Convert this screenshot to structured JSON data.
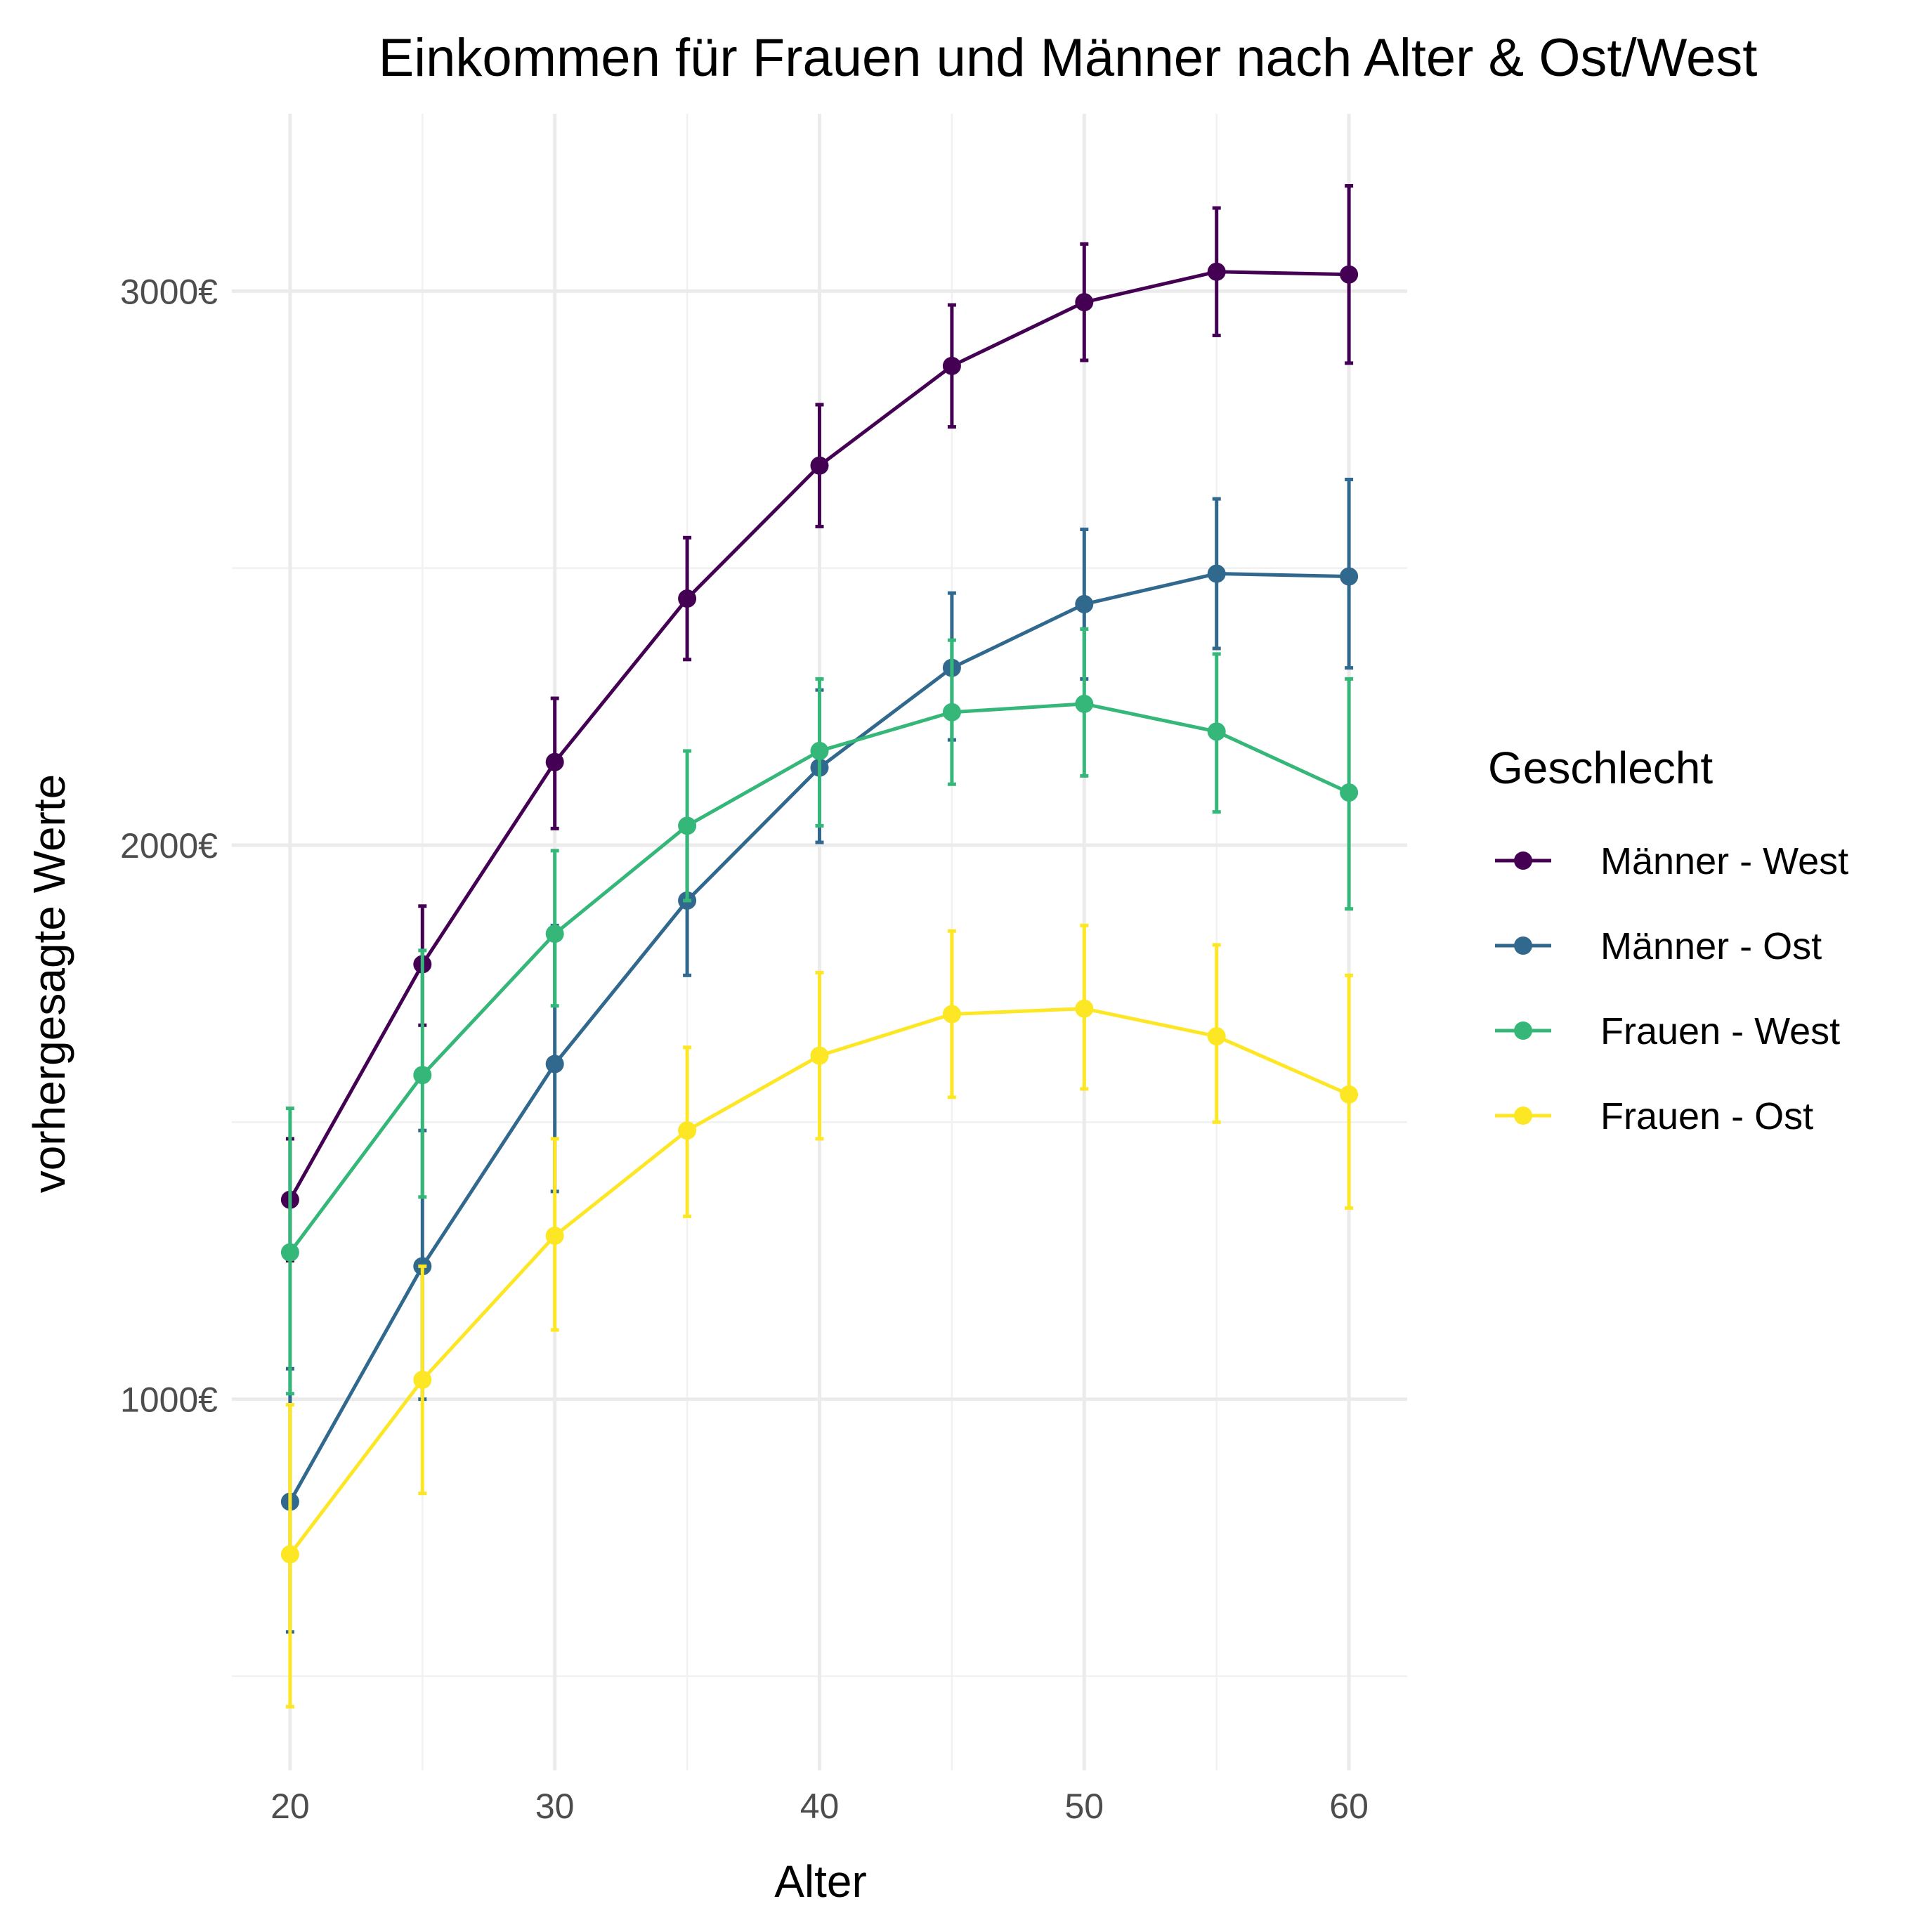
{
  "chart_data": {
    "type": "line",
    "title": "Einkommen für Frauen und Männer nach Alter & Ost/West",
    "xlabel": "Alter",
    "ylabel": "vorhergesagte Werte",
    "x": [
      20,
      25,
      30,
      35,
      40,
      45,
      50,
      55,
      60
    ],
    "x_ticks": [
      20,
      30,
      40,
      50,
      60
    ],
    "x_tick_labels": [
      "20",
      "30",
      "40",
      "50",
      "60"
    ],
    "xlim": [
      17.8,
      62.2
    ],
    "y_ticks": [
      1000,
      2000,
      3000
    ],
    "y_tick_labels": [
      "1000€",
      "2000€",
      "3000€"
    ],
    "y_minor_ticks": [
      500,
      1500,
      2500
    ],
    "ylim": [
      330,
      3320
    ],
    "grid": true,
    "error_bars": true,
    "legend": {
      "title": "Geschlecht",
      "position": "right"
    },
    "series": [
      {
        "name": "Männer - West",
        "color": "#440154",
        "values": [
          1360,
          1785,
          2150,
          2445,
          2685,
          2865,
          2980,
          3035,
          3030
        ],
        "lower": [
          1250,
          1675,
          2030,
          2335,
          2575,
          2755,
          2875,
          2920,
          2870
        ],
        "upper": [
          1470,
          1890,
          2265,
          2555,
          2795,
          2975,
          3085,
          3150,
          3190
        ]
      },
      {
        "name": "Männer - Ost",
        "color": "#31688e",
        "values": [
          815,
          1240,
          1605,
          1900,
          2140,
          2320,
          2435,
          2490,
          2485
        ],
        "lower": [
          580,
          1000,
          1375,
          1765,
          2005,
          2190,
          2300,
          2355,
          2320
        ],
        "upper": [
          1055,
          1485,
          1855,
          2040,
          2280,
          2455,
          2570,
          2625,
          2660
        ]
      },
      {
        "name": "Frauen - West",
        "color": "#35b779",
        "values": [
          1265,
          1585,
          1840,
          2035,
          2170,
          2240,
          2255,
          2205,
          2095
        ],
        "lower": [
          1010,
          1365,
          1710,
          1900,
          2035,
          2110,
          2125,
          2060,
          1885
        ],
        "upper": [
          1525,
          1810,
          1990,
          2170,
          2300,
          2370,
          2390,
          2345,
          2300
        ]
      },
      {
        "name": "Frauen - Ost",
        "color": "#fde725",
        "values": [
          720,
          1035,
          1295,
          1485,
          1620,
          1695,
          1705,
          1655,
          1550
        ],
        "lower": [
          445,
          830,
          1125,
          1330,
          1470,
          1545,
          1560,
          1500,
          1345
        ],
        "upper": [
          990,
          1240,
          1470,
          1635,
          1770,
          1845,
          1855,
          1820,
          1765
        ]
      }
    ]
  }
}
